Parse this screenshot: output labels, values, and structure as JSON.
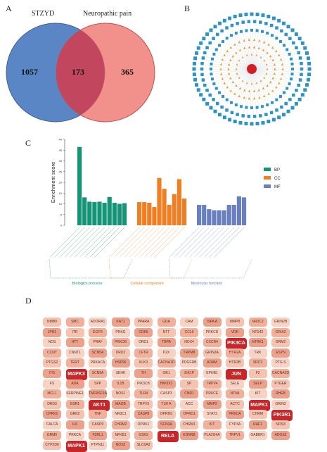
{
  "panels": {
    "a": "A",
    "b": "B",
    "c": "C",
    "d": "D"
  },
  "venn": {
    "left_label": "STZYD",
    "right_label": "Neuropathic pain",
    "left_only": "1057",
    "overlap": "173",
    "right_only": "365",
    "left_color": "#5b86c5",
    "right_color": "#f07c78",
    "overlap_color": "#c2475e"
  },
  "network_b": {
    "outer_color": "#2c93c4",
    "middle_color": "#e8a33a",
    "center_color": "#d21f26",
    "edge_color": "#cfd4da"
  },
  "chart_data": {
    "type": "bar",
    "ylabel": "Enrichment score",
    "ylim": [
      0,
      40
    ],
    "yticks": [
      0,
      5,
      10,
      15,
      20,
      25,
      30,
      35,
      40
    ],
    "legend": [
      "BP",
      "CC",
      "MF"
    ],
    "legend_position": "right",
    "groups": [
      {
        "name": "Biologics process",
        "color": "#159577",
        "values": [
          36.5,
          13,
          11,
          10.8,
          11,
          10.5,
          13.2,
          10.5,
          10,
          10.3
        ]
      },
      {
        "name": "Cellular component",
        "color": "#ef7f22",
        "values": [
          10.8,
          10.8,
          10.5,
          8.5,
          22,
          17,
          9.5,
          14.5,
          21.5,
          12.5
        ]
      },
      {
        "name": "Molecular function",
        "color": "#6a7fbd",
        "values": [
          9.5,
          9.5,
          7.5,
          7,
          7,
          7,
          9.5,
          9.5,
          13.5,
          13
        ]
      }
    ]
  },
  "network_d": {
    "genes": [
      "NMB9",
      "SMC",
      "ADORA1",
      "KAT1",
      "PPARA",
      "GDA",
      "CAM",
      "ISPA A",
      "MMP8",
      "NR3C2",
      "GRIN2B",
      "JPR2",
      "ITR",
      "EGFR",
      "PRKG",
      "CDK5",
      "NTT",
      "CCL5",
      "PRKCD",
      "VDR",
      "NTS42",
      "GRIA2",
      "NOS",
      "HTT",
      "PRAF",
      "PRKCB",
      "DRD1",
      "TRPA",
      "NOX4",
      "CXCR4",
      "PIK3CA",
      "NTRK1",
      "GRM2",
      "CCNT",
      "CNNT1",
      "SCN5A",
      "DRD2",
      "CFTR",
      "P2X",
      "TRPM8",
      "GRIN2A",
      "HTR2A",
      "TRK",
      "ESYN",
      "PTGS2",
      "TERT",
      "PRKACA",
      "HSP90",
      "KLK3",
      "CACNA1D",
      "PDGFRB",
      "ADAM",
      "HTR2B",
      "SRC3",
      "PTG S",
      "ITG",
      "MAPK3",
      "SCN9A",
      "SEHK",
      "TH",
      "SIK1",
      "SIK1P",
      "EPHB1",
      "JUN",
      "F2",
      "CACNA2D",
      "FS",
      "ADA",
      "SPP",
      "IL1B",
      "PIK3CB",
      "HMOX1",
      "SP",
      "TRPV4",
      "SELE",
      "SELP",
      "PTGER",
      "MCL1",
      "SERPINE1",
      "TNFRSF1A",
      "NOS1",
      "TLR4",
      "CASP3",
      "CNR1",
      "PRKCE",
      "NTN4",
      "KIT",
      "RHEB",
      "DRD3",
      "ESR1",
      "AKT1",
      "MAOB",
      "TRPV3",
      "TLR A",
      "ACC",
      "MMP2",
      "ACTC",
      "MAPK1",
      "GRIN2",
      "CPRK1",
      "GRK2",
      "TNF",
      "NR3C1",
      "CASP8",
      "OPRM1",
      "OPRD1",
      "STAT3",
      "PRKCA",
      "CHRM",
      "PIK3R1",
      "CALCA",
      "IL6",
      "CASP9",
      "CHRM2",
      "OPRK1",
      "SCN3A",
      "CHRM1",
      "KIT",
      "CYP3A",
      "RAF1",
      "NOS3",
      "GRM5",
      "PRKCA",
      "F2RL1",
      "NFKB1",
      "GSK3",
      "RELA",
      "EDNRB",
      "PLA2G4A",
      "TRPV1",
      "GABBR1",
      "ADOS2",
      "CYP2D6",
      "MAPK1",
      "PTPN11",
      "NOS2",
      "SLC6A3"
    ],
    "hubs": {
      "SRC": "SRC",
      "MAPK3": "MAPK3",
      "PIK3CA": "PIK3CA",
      "JUN": "JUN",
      "MAPK1": "MAPK1",
      "AKT1": "AKT1",
      "PIK3R1": "PIK3R1",
      "RELA": "RELA"
    }
  }
}
